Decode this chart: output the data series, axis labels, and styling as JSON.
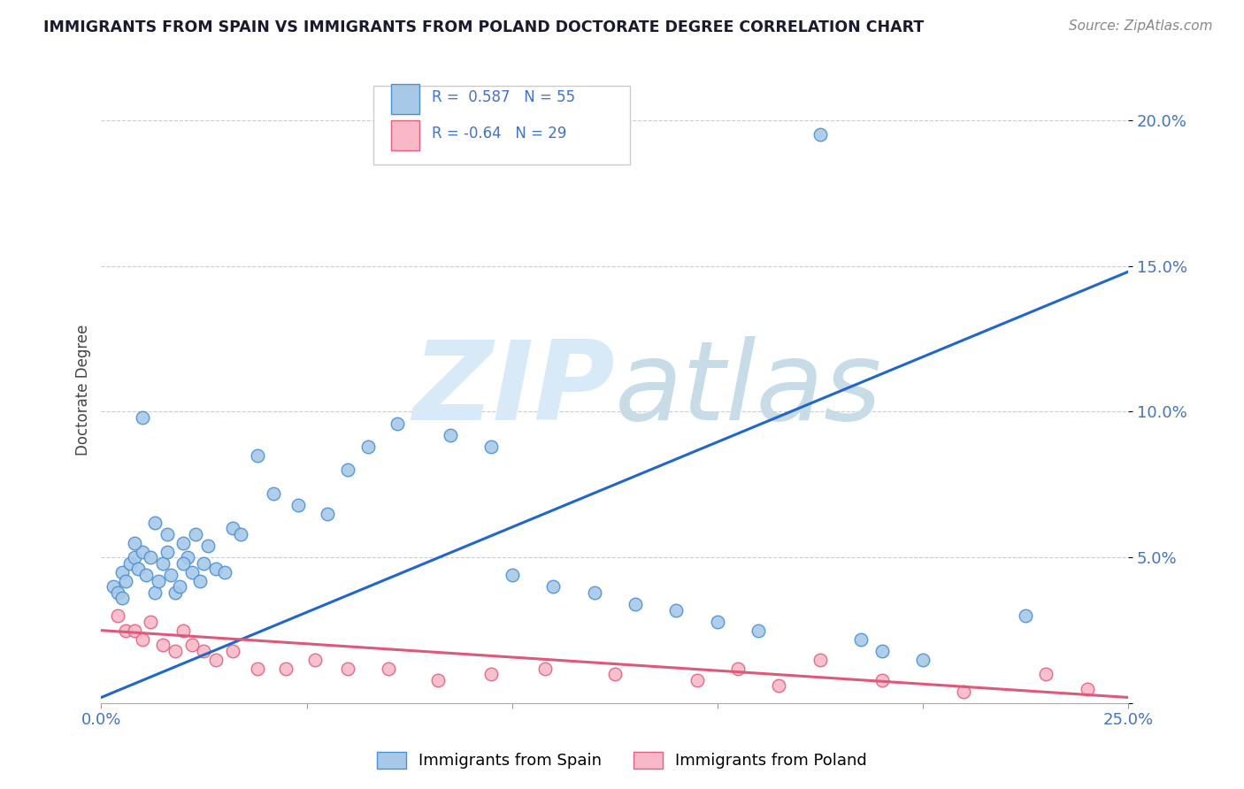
{
  "title": "IMMIGRANTS FROM SPAIN VS IMMIGRANTS FROM POLAND DOCTORATE DEGREE CORRELATION CHART",
  "source": "Source: ZipAtlas.com",
  "ylabel": "Doctorate Degree",
  "xlim": [
    0.0,
    0.25
  ],
  "ylim": [
    0.0,
    0.215
  ],
  "xticks": [
    0.0,
    0.05,
    0.1,
    0.15,
    0.2,
    0.25
  ],
  "yticks": [
    0.0,
    0.05,
    0.1,
    0.15,
    0.2
  ],
  "spain_R": 0.587,
  "spain_N": 55,
  "poland_R": -0.64,
  "poland_N": 29,
  "spain_color": "#a8c8e8",
  "spain_edge_color": "#4a90d4",
  "spain_line_color": "#2266cc",
  "poland_color": "#f8b8c8",
  "poland_edge_color": "#e06080",
  "poland_line_color": "#e05878",
  "watermark_color": "#d8eaf8",
  "background_color": "#ffffff",
  "grid_color": "#cccccc",
  "title_color": "#1a1a2e",
  "axis_label_color": "#444444",
  "tick_label_color": "#4472c4",
  "legend_color": "#4472c4",
  "spain_x": [
    0.003,
    0.004,
    0.005,
    0.006,
    0.007,
    0.008,
    0.009,
    0.01,
    0.011,
    0.012,
    0.013,
    0.014,
    0.015,
    0.016,
    0.017,
    0.018,
    0.019,
    0.02,
    0.021,
    0.022,
    0.023,
    0.024,
    0.025,
    0.026,
    0.028,
    0.03,
    0.032,
    0.034,
    0.038,
    0.042,
    0.048,
    0.055,
    0.06,
    0.065,
    0.072,
    0.085,
    0.095,
    0.1,
    0.11,
    0.12,
    0.13,
    0.14,
    0.15,
    0.16,
    0.175,
    0.185,
    0.19,
    0.2,
    0.005,
    0.008,
    0.01,
    0.013,
    0.016,
    0.02,
    0.225
  ],
  "spain_y": [
    0.04,
    0.038,
    0.045,
    0.042,
    0.048,
    0.05,
    0.046,
    0.052,
    0.044,
    0.05,
    0.038,
    0.042,
    0.048,
    0.052,
    0.044,
    0.038,
    0.04,
    0.055,
    0.05,
    0.045,
    0.058,
    0.042,
    0.048,
    0.054,
    0.046,
    0.045,
    0.06,
    0.058,
    0.085,
    0.072,
    0.068,
    0.065,
    0.08,
    0.088,
    0.096,
    0.092,
    0.088,
    0.044,
    0.04,
    0.038,
    0.034,
    0.032,
    0.028,
    0.025,
    0.195,
    0.022,
    0.018,
    0.015,
    0.036,
    0.055,
    0.098,
    0.062,
    0.058,
    0.048,
    0.03
  ],
  "poland_x": [
    0.004,
    0.006,
    0.008,
    0.01,
    0.012,
    0.015,
    0.018,
    0.02,
    0.022,
    0.025,
    0.028,
    0.032,
    0.038,
    0.045,
    0.052,
    0.06,
    0.07,
    0.082,
    0.095,
    0.108,
    0.125,
    0.145,
    0.165,
    0.19,
    0.21,
    0.23,
    0.24,
    0.155,
    0.175
  ],
  "poland_y": [
    0.03,
    0.025,
    0.025,
    0.022,
    0.028,
    0.02,
    0.018,
    0.025,
    0.02,
    0.018,
    0.015,
    0.018,
    0.012,
    0.012,
    0.015,
    0.012,
    0.012,
    0.008,
    0.01,
    0.012,
    0.01,
    0.008,
    0.006,
    0.008,
    0.004,
    0.01,
    0.005,
    0.012,
    0.015
  ],
  "spain_trend_x": [
    0.0,
    0.25
  ],
  "spain_trend_y": [
    0.002,
    0.148
  ],
  "poland_trend_x": [
    0.0,
    0.25
  ],
  "poland_trend_y": [
    0.025,
    0.002
  ],
  "legend_spain_label": "Immigrants from Spain",
  "legend_poland_label": "Immigrants from Poland"
}
